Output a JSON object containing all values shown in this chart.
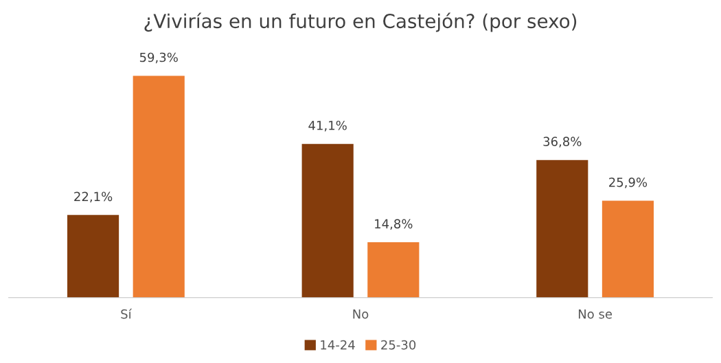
{
  "chart_data": {
    "type": "bar",
    "title": "¿Vivirías en un futuro en Castejón? (por sexo)",
    "categories": [
      "Sí",
      "No",
      "No se"
    ],
    "series": [
      {
        "name": "14-24",
        "color": "#843c0c",
        "values": [
          22.1,
          41.1,
          36.8
        ],
        "value_labels": [
          "22,1%",
          "41,1%",
          "36,8%"
        ]
      },
      {
        "name": "25-30",
        "color": "#ed7d31",
        "values": [
          59.3,
          14.8,
          25.9
        ],
        "value_labels": [
          "59,3%",
          "14,8%",
          "25,9%"
        ]
      }
    ],
    "legend": "bottom",
    "grid": false
  }
}
